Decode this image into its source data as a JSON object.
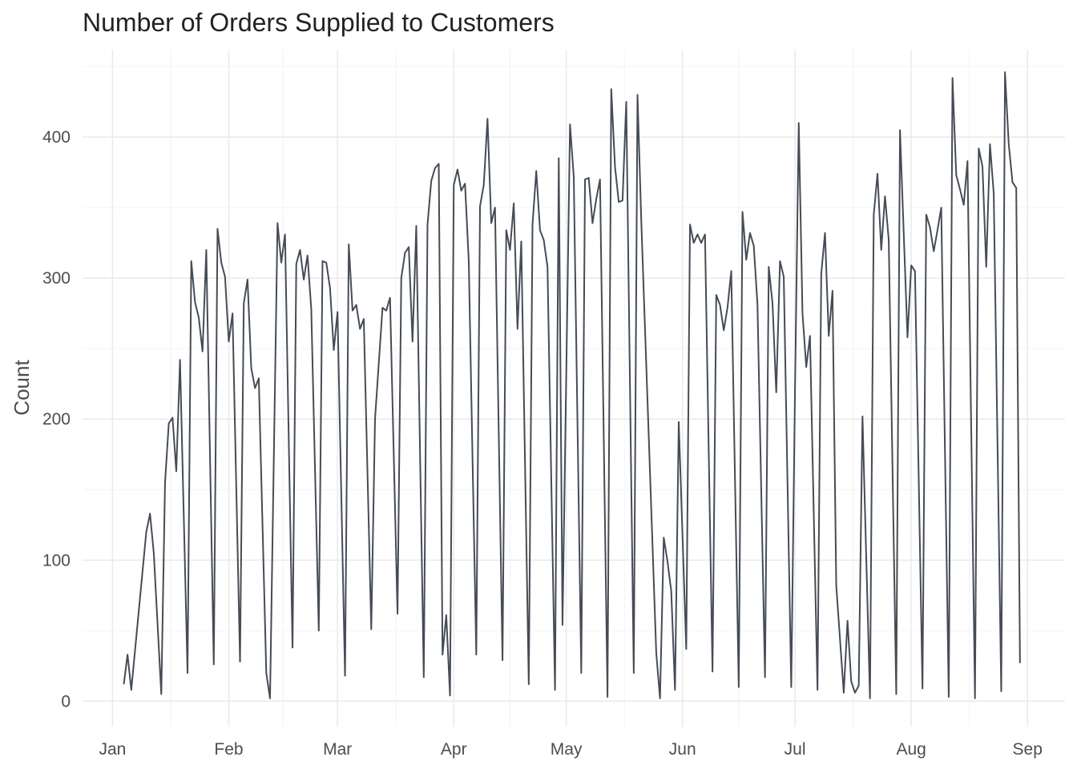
{
  "chart_data": {
    "type": "line",
    "title": "Number of Orders Supplied to Customers",
    "xlabel": "",
    "ylabel": "Count",
    "x_axis": {
      "type": "date",
      "ticks": [
        "2016-01-01",
        "2016-02-01",
        "2016-03-01",
        "2016-04-01",
        "2016-05-01",
        "2016-06-01",
        "2016-07-01",
        "2016-08-01",
        "2016-09-01"
      ],
      "tick_labels": [
        "Jan",
        "Feb",
        "Mar",
        "Apr",
        "May",
        "Jun",
        "Jul",
        "Aug",
        "Sep"
      ],
      "range": [
        "2015-12-24",
        "2016-09-11"
      ]
    },
    "y_axis": {
      "ticks": [
        0,
        100,
        200,
        300,
        400
      ],
      "tick_labels": [
        "0",
        "100",
        "200",
        "300",
        "400"
      ],
      "range": [
        -18,
        462
      ]
    },
    "grid": true,
    "line_color": "#454c56",
    "series": [
      {
        "points": [
          [
            "2016-01-04",
            12
          ],
          [
            "2016-01-05",
            33
          ],
          [
            "2016-01-06",
            8
          ],
          [
            "2016-01-10",
            120
          ],
          [
            "2016-01-11",
            133
          ],
          [
            "2016-01-12",
            105
          ],
          [
            "2016-01-14",
            5
          ],
          [
            "2016-01-15",
            155
          ],
          [
            "2016-01-16",
            197
          ],
          [
            "2016-01-17",
            201
          ],
          [
            "2016-01-18",
            163
          ],
          [
            "2016-01-19",
            242
          ],
          [
            "2016-01-21",
            20
          ],
          [
            "2016-01-22",
            312
          ],
          [
            "2016-01-23",
            283
          ],
          [
            "2016-01-24",
            272
          ],
          [
            "2016-01-25",
            248
          ],
          [
            "2016-01-26",
            320
          ],
          [
            "2016-01-28",
            26
          ],
          [
            "2016-01-29",
            335
          ],
          [
            "2016-01-30",
            311
          ],
          [
            "2016-01-31",
            301
          ],
          [
            "2016-02-01",
            255
          ],
          [
            "2016-02-02",
            275
          ],
          [
            "2016-02-04",
            28
          ],
          [
            "2016-02-05",
            282
          ],
          [
            "2016-02-06",
            299
          ],
          [
            "2016-02-07",
            236
          ],
          [
            "2016-02-08",
            222
          ],
          [
            "2016-02-09",
            229
          ],
          [
            "2016-02-11",
            20
          ],
          [
            "2016-02-12",
            2
          ],
          [
            "2016-02-14",
            339
          ],
          [
            "2016-02-15",
            311
          ],
          [
            "2016-02-16",
            331
          ],
          [
            "2016-02-18",
            38
          ],
          [
            "2016-02-19",
            310
          ],
          [
            "2016-02-20",
            320
          ],
          [
            "2016-02-21",
            299
          ],
          [
            "2016-02-22",
            316
          ],
          [
            "2016-02-23",
            278
          ],
          [
            "2016-02-25",
            50
          ],
          [
            "2016-02-26",
            312
          ],
          [
            "2016-02-27",
            311
          ],
          [
            "2016-02-28",
            293
          ],
          [
            "2016-02-29",
            249
          ],
          [
            "2016-03-01",
            276
          ],
          [
            "2016-03-03",
            18
          ],
          [
            "2016-03-04",
            324
          ],
          [
            "2016-03-05",
            277
          ],
          [
            "2016-03-06",
            281
          ],
          [
            "2016-03-07",
            264
          ],
          [
            "2016-03-08",
            271
          ],
          [
            "2016-03-10",
            51
          ],
          [
            "2016-03-11",
            200
          ],
          [
            "2016-03-13",
            279
          ],
          [
            "2016-03-14",
            277
          ],
          [
            "2016-03-15",
            286
          ],
          [
            "2016-03-17",
            62
          ],
          [
            "2016-03-18",
            300
          ],
          [
            "2016-03-19",
            318
          ],
          [
            "2016-03-20",
            322
          ],
          [
            "2016-03-21",
            255
          ],
          [
            "2016-03-22",
            337
          ],
          [
            "2016-03-24",
            17
          ],
          [
            "2016-03-25",
            338
          ],
          [
            "2016-03-26",
            369
          ],
          [
            "2016-03-27",
            378
          ],
          [
            "2016-03-28",
            381
          ],
          [
            "2016-03-29",
            33
          ],
          [
            "2016-03-30",
            61
          ],
          [
            "2016-03-31",
            4
          ],
          [
            "2016-04-01",
            366
          ],
          [
            "2016-04-02",
            377
          ],
          [
            "2016-04-03",
            362
          ],
          [
            "2016-04-04",
            367
          ],
          [
            "2016-04-05",
            312
          ],
          [
            "2016-04-07",
            33
          ],
          [
            "2016-04-08",
            351
          ],
          [
            "2016-04-09",
            366
          ],
          [
            "2016-04-10",
            413
          ],
          [
            "2016-04-11",
            339
          ],
          [
            "2016-04-12",
            350
          ],
          [
            "2016-04-14",
            29
          ],
          [
            "2016-04-15",
            334
          ],
          [
            "2016-04-16",
            320
          ],
          [
            "2016-04-17",
            353
          ],
          [
            "2016-04-18",
            264
          ],
          [
            "2016-04-19",
            326
          ],
          [
            "2016-04-21",
            12
          ],
          [
            "2016-04-22",
            338
          ],
          [
            "2016-04-23",
            376
          ],
          [
            "2016-04-24",
            334
          ],
          [
            "2016-04-25",
            327
          ],
          [
            "2016-04-26",
            308
          ],
          [
            "2016-04-28",
            8
          ],
          [
            "2016-04-29",
            385
          ],
          [
            "2016-04-30",
            54
          ],
          [
            "2016-05-02",
            409
          ],
          [
            "2016-05-03",
            372
          ],
          [
            "2016-05-05",
            20
          ],
          [
            "2016-05-06",
            370
          ],
          [
            "2016-05-07",
            371
          ],
          [
            "2016-05-08",
            339
          ],
          [
            "2016-05-09",
            356
          ],
          [
            "2016-05-10",
            370
          ],
          [
            "2016-05-12",
            3
          ],
          [
            "2016-05-13",
            434
          ],
          [
            "2016-05-14",
            379
          ],
          [
            "2016-05-15",
            354
          ],
          [
            "2016-05-16",
            355
          ],
          [
            "2016-05-17",
            425
          ],
          [
            "2016-05-19",
            20
          ],
          [
            "2016-05-20",
            430
          ],
          [
            "2016-05-21",
            341
          ],
          [
            "2016-05-25",
            34
          ],
          [
            "2016-05-26",
            2
          ],
          [
            "2016-05-27",
            116
          ],
          [
            "2016-05-28",
            99
          ],
          [
            "2016-05-29",
            78
          ],
          [
            "2016-05-30",
            8
          ],
          [
            "2016-05-31",
            198
          ],
          [
            "2016-06-02",
            37
          ],
          [
            "2016-06-03",
            338
          ],
          [
            "2016-06-04",
            325
          ],
          [
            "2016-06-05",
            331
          ],
          [
            "2016-06-06",
            325
          ],
          [
            "2016-06-07",
            331
          ],
          [
            "2016-06-09",
            21
          ],
          [
            "2016-06-10",
            288
          ],
          [
            "2016-06-11",
            281
          ],
          [
            "2016-06-12",
            263
          ],
          [
            "2016-06-13",
            279
          ],
          [
            "2016-06-14",
            305
          ],
          [
            "2016-06-16",
            10
          ],
          [
            "2016-06-17",
            347
          ],
          [
            "2016-06-18",
            313
          ],
          [
            "2016-06-19",
            332
          ],
          [
            "2016-06-20",
            323
          ],
          [
            "2016-06-21",
            281
          ],
          [
            "2016-06-23",
            17
          ],
          [
            "2016-06-24",
            308
          ],
          [
            "2016-06-25",
            282
          ],
          [
            "2016-06-26",
            219
          ],
          [
            "2016-06-27",
            312
          ],
          [
            "2016-06-28",
            301
          ],
          [
            "2016-06-30",
            10
          ],
          [
            "2016-07-01",
            220
          ],
          [
            "2016-07-02",
            410
          ],
          [
            "2016-07-03",
            275
          ],
          [
            "2016-07-04",
            237
          ],
          [
            "2016-07-05",
            259
          ],
          [
            "2016-07-07",
            8
          ],
          [
            "2016-07-08",
            303
          ],
          [
            "2016-07-09",
            332
          ],
          [
            "2016-07-10",
            259
          ],
          [
            "2016-07-11",
            291
          ],
          [
            "2016-07-12",
            82
          ],
          [
            "2016-07-14",
            6
          ],
          [
            "2016-07-15",
            57
          ],
          [
            "2016-07-16",
            14
          ],
          [
            "2016-07-17",
            6
          ],
          [
            "2016-07-18",
            11
          ],
          [
            "2016-07-19",
            202
          ],
          [
            "2016-07-21",
            2
          ],
          [
            "2016-07-22",
            345
          ],
          [
            "2016-07-23",
            374
          ],
          [
            "2016-07-24",
            320
          ],
          [
            "2016-07-25",
            358
          ],
          [
            "2016-07-26",
            327
          ],
          [
            "2016-07-28",
            5
          ],
          [
            "2016-07-29",
            405
          ],
          [
            "2016-07-31",
            258
          ],
          [
            "2016-08-01",
            309
          ],
          [
            "2016-08-02",
            305
          ],
          [
            "2016-08-04",
            9
          ],
          [
            "2016-08-05",
            345
          ],
          [
            "2016-08-06",
            336
          ],
          [
            "2016-08-07",
            319
          ],
          [
            "2016-08-08",
            334
          ],
          [
            "2016-08-09",
            350
          ],
          [
            "2016-08-11",
            3
          ],
          [
            "2016-08-12",
            442
          ],
          [
            "2016-08-13",
            373
          ],
          [
            "2016-08-14",
            363
          ],
          [
            "2016-08-15",
            352
          ],
          [
            "2016-08-16",
            383
          ],
          [
            "2016-08-18",
            2
          ],
          [
            "2016-08-19",
            392
          ],
          [
            "2016-08-20",
            379
          ],
          [
            "2016-08-21",
            308
          ],
          [
            "2016-08-22",
            395
          ],
          [
            "2016-08-23",
            360
          ],
          [
            "2016-08-25",
            7
          ],
          [
            "2016-08-26",
            446
          ],
          [
            "2016-08-27",
            395
          ],
          [
            "2016-08-28",
            368
          ],
          [
            "2016-08-29",
            364
          ],
          [
            "2016-08-30",
            27
          ]
        ]
      }
    ]
  }
}
